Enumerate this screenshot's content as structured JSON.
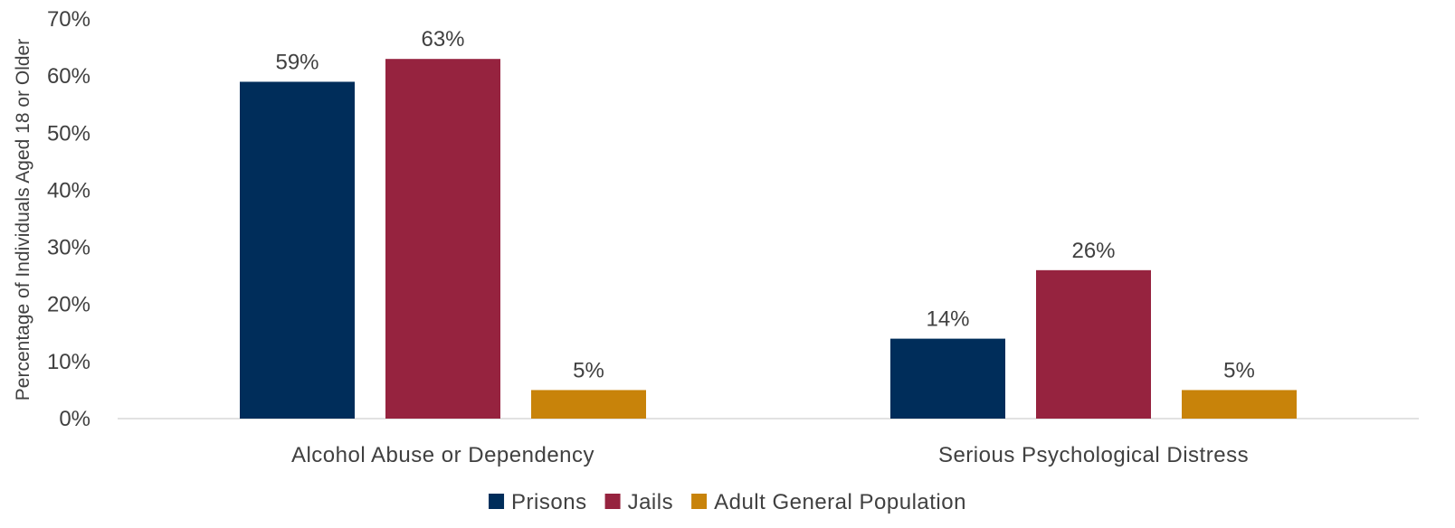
{
  "chart_data": {
    "type": "bar",
    "title": "",
    "xlabel": "",
    "ylabel": "Percentage of Individuals Aged 18 or Older",
    "categories": [
      "Alcohol Abuse or Dependency",
      "Serious Psychological Distress"
    ],
    "series": [
      {
        "name": "Prisons",
        "values": [
          59,
          14
        ],
        "labels": [
          "59%",
          "14%"
        ],
        "color": "#002D5A"
      },
      {
        "name": "Jails",
        "values": [
          63,
          26
        ],
        "labels": [
          "63%",
          "26%"
        ],
        "color": "#96233F"
      },
      {
        "name": "Adult General Population",
        "values": [
          5,
          5
        ],
        "labels": [
          "5%",
          "5%"
        ],
        "color": "#C8830A"
      }
    ],
    "ylim": [
      0,
      70
    ],
    "yticks": [
      "0%",
      "10%",
      "20%",
      "30%",
      "40%",
      "50%",
      "60%",
      "70%"
    ],
    "grid": false,
    "legend_position": "bottom"
  }
}
